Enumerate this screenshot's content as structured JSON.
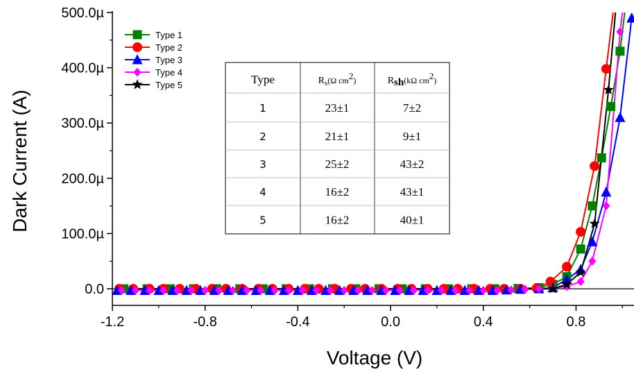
{
  "chart_data": {
    "type": "line",
    "xlabel": "Voltage (V)",
    "ylabel": "Dark Current (A)",
    "xlim": [
      -1.2,
      1.05
    ],
    "ylim": [
      -30,
      500
    ],
    "x_ticks": [
      "-1.2",
      "-0.8",
      "-0.4",
      "0.0",
      "0.4",
      "0.8"
    ],
    "y_ticks": [
      "0.0",
      "100.0µ",
      "200.0µ",
      "300.0µ",
      "400.0µ",
      "500.0µ"
    ],
    "legend_position": "top-left",
    "series": [
      {
        "name": "Type 1",
        "color": "#008000",
        "marker": "square",
        "points": [
          [
            -1.15,
            0
          ],
          [
            -1.05,
            0
          ],
          [
            -0.95,
            0
          ],
          [
            -0.85,
            0
          ],
          [
            -0.75,
            0
          ],
          [
            -0.65,
            0
          ],
          [
            -0.55,
            0
          ],
          [
            -0.45,
            0
          ],
          [
            -0.35,
            0
          ],
          [
            -0.25,
            0
          ],
          [
            -0.15,
            0
          ],
          [
            -0.05,
            0
          ],
          [
            0.05,
            0
          ],
          [
            0.15,
            0
          ],
          [
            0.25,
            0
          ],
          [
            0.35,
            0
          ],
          [
            0.45,
            0
          ],
          [
            0.55,
            0.5
          ],
          [
            0.64,
            2
          ],
          [
            0.7,
            8
          ],
          [
            0.76,
            22
          ],
          [
            0.82,
            72
          ],
          [
            0.87,
            150
          ],
          [
            0.91,
            237
          ],
          [
            0.95,
            330
          ],
          [
            0.99,
            430
          ],
          [
            1.01,
            500
          ]
        ]
      },
      {
        "name": "Type 2",
        "color": "#ff0000",
        "marker": "circle",
        "points": [
          [
            -1.17,
            0
          ],
          [
            -1.11,
            0
          ],
          [
            -1.04,
            0
          ],
          [
            -0.98,
            0
          ],
          [
            -0.91,
            0
          ],
          [
            -0.84,
            0
          ],
          [
            -0.77,
            0
          ],
          [
            -0.71,
            0
          ],
          [
            -0.64,
            0
          ],
          [
            -0.57,
            0
          ],
          [
            -0.51,
            0
          ],
          [
            -0.44,
            0
          ],
          [
            -0.37,
            0
          ],
          [
            -0.31,
            0
          ],
          [
            -0.24,
            0
          ],
          [
            -0.17,
            0
          ],
          [
            -0.11,
            0
          ],
          [
            -0.04,
            0
          ],
          [
            0.03,
            0
          ],
          [
            0.09,
            0
          ],
          [
            0.16,
            0
          ],
          [
            0.23,
            0
          ],
          [
            0.29,
            0
          ],
          [
            0.36,
            0
          ],
          [
            0.43,
            0
          ],
          [
            0.49,
            0
          ],
          [
            0.56,
            0
          ],
          [
            0.63,
            1
          ],
          [
            0.69,
            13
          ],
          [
            0.76,
            40
          ],
          [
            0.82,
            103
          ],
          [
            0.88,
            222
          ],
          [
            0.93,
            398
          ],
          [
            0.96,
            500
          ]
        ]
      },
      {
        "name": "Type 3",
        "color": "#0000ff",
        "marker": "triangle",
        "points": [
          [
            -1.18,
            -3
          ],
          [
            -1.12,
            -3
          ],
          [
            -1.06,
            -3
          ],
          [
            -1.0,
            -3
          ],
          [
            -0.94,
            -3
          ],
          [
            -0.88,
            -3
          ],
          [
            -0.82,
            -3
          ],
          [
            -0.76,
            -3
          ],
          [
            -0.7,
            -3
          ],
          [
            -0.64,
            -3
          ],
          [
            -0.58,
            -3
          ],
          [
            -0.52,
            -3
          ],
          [
            -0.46,
            -3
          ],
          [
            -0.4,
            -3
          ],
          [
            -0.34,
            -3
          ],
          [
            -0.28,
            -3
          ],
          [
            -0.22,
            -3
          ],
          [
            -0.16,
            -3
          ],
          [
            -0.1,
            -3
          ],
          [
            -0.04,
            -3
          ],
          [
            0.02,
            -3
          ],
          [
            0.08,
            -3
          ],
          [
            0.14,
            -3
          ],
          [
            0.2,
            -3
          ],
          [
            0.26,
            -3
          ],
          [
            0.32,
            -3
          ],
          [
            0.38,
            -3
          ],
          [
            0.44,
            -3
          ],
          [
            0.5,
            -2
          ],
          [
            0.56,
            -1
          ],
          [
            0.64,
            0
          ],
          [
            0.7,
            2
          ],
          [
            0.76,
            17
          ],
          [
            0.82,
            35
          ],
          [
            0.87,
            85
          ],
          [
            0.93,
            175
          ],
          [
            0.99,
            310
          ],
          [
            1.04,
            490
          ]
        ]
      },
      {
        "name": "Type 4",
        "color": "#ff00ff",
        "marker": "diamond",
        "points": [
          [
            -1.16,
            -3
          ],
          [
            -1.1,
            -3
          ],
          [
            -1.04,
            -3
          ],
          [
            -0.98,
            -3
          ],
          [
            -0.92,
            -3
          ],
          [
            -0.86,
            -3
          ],
          [
            -0.8,
            -3
          ],
          [
            -0.74,
            -3
          ],
          [
            -0.68,
            -3
          ],
          [
            -0.62,
            -3
          ],
          [
            -0.56,
            -3
          ],
          [
            -0.5,
            -3
          ],
          [
            -0.44,
            -3
          ],
          [
            -0.38,
            -3
          ],
          [
            -0.32,
            -3
          ],
          [
            -0.26,
            -3
          ],
          [
            -0.2,
            -3
          ],
          [
            -0.14,
            -3
          ],
          [
            -0.08,
            -3
          ],
          [
            -0.02,
            -3
          ],
          [
            0.04,
            -3
          ],
          [
            0.1,
            -3
          ],
          [
            0.16,
            -3
          ],
          [
            0.22,
            -3
          ],
          [
            0.28,
            -3
          ],
          [
            0.34,
            -3
          ],
          [
            0.4,
            -3
          ],
          [
            0.46,
            -3
          ],
          [
            0.52,
            -2
          ],
          [
            0.58,
            -1
          ],
          [
            0.64,
            0
          ],
          [
            0.7,
            1
          ],
          [
            0.76,
            4
          ],
          [
            0.82,
            13
          ],
          [
            0.87,
            50
          ],
          [
            0.93,
            150
          ],
          [
            0.99,
            465
          ],
          [
            1.0,
            500
          ]
        ]
      },
      {
        "name": "Type 5",
        "color": "#000000",
        "marker": "star",
        "points": [
          [
            0.7,
            0
          ],
          [
            0.76,
            8
          ],
          [
            0.82,
            30
          ],
          [
            0.88,
            118
          ],
          [
            0.94,
            360
          ],
          [
            0.97,
            500
          ]
        ]
      }
    ],
    "table": {
      "headers": [
        "Type",
        "Rs(Ω cm2)",
        "Rsh (kΩ cm2)"
      ],
      "header_main": [
        "Type",
        "R",
        "R"
      ],
      "header_sub": [
        "",
        "s",
        "sh"
      ],
      "header_unit": [
        "",
        "(Ω cm",
        "(kΩ cm"
      ],
      "header_exp": [
        "",
        "2",
        "2"
      ],
      "header_close": [
        "",
        ")",
        ")"
      ],
      "rows": [
        [
          "1",
          "23±1",
          "7±2"
        ],
        [
          "2",
          "21±1",
          "9±1"
        ],
        [
          "3",
          "25±2",
          "43±2"
        ],
        [
          "4",
          "16±2",
          "43±1"
        ],
        [
          "5",
          "16±2",
          "40±1"
        ]
      ]
    }
  }
}
